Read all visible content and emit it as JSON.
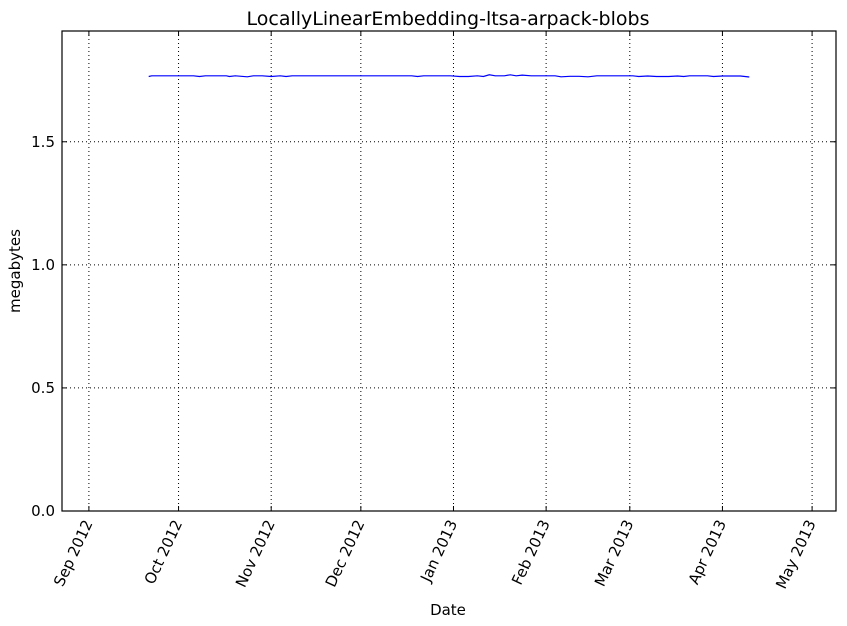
{
  "chart_data": {
    "type": "line",
    "title": "LocallyLinearEmbedding-ltsa-arpack-blobs",
    "xlabel": "Date",
    "ylabel": "megabytes",
    "xlim": [
      "2012-08-23",
      "2013-05-09"
    ],
    "ylim": [
      0,
      1.95
    ],
    "grid": true,
    "x_ticks": [
      {
        "date": "2012-09-01",
        "label": "Sep 2012"
      },
      {
        "date": "2012-10-01",
        "label": "Oct 2012"
      },
      {
        "date": "2012-11-01",
        "label": "Nov 2012"
      },
      {
        "date": "2012-12-01",
        "label": "Dec 2012"
      },
      {
        "date": "2013-01-01",
        "label": "Jan 2013"
      },
      {
        "date": "2013-02-01",
        "label": "Feb 2013"
      },
      {
        "date": "2013-03-01",
        "label": "Mar 2013"
      },
      {
        "date": "2013-04-01",
        "label": "Apr 2013"
      },
      {
        "date": "2013-05-01",
        "label": "May 2013"
      }
    ],
    "y_ticks": [
      {
        "value": 0.0,
        "label": "0.0"
      },
      {
        "value": 0.5,
        "label": "0.5"
      },
      {
        "value": 1.0,
        "label": "1.0"
      },
      {
        "value": 1.5,
        "label": "1.5"
      }
    ],
    "series": [
      {
        "color": "#0000ff",
        "points": [
          [
            "2012-09-21",
            1.765
          ],
          [
            "2012-09-22",
            1.768
          ],
          [
            "2012-09-25",
            1.768
          ],
          [
            "2012-09-29",
            1.768
          ],
          [
            "2012-10-03",
            1.768
          ],
          [
            "2012-10-06",
            1.768
          ],
          [
            "2012-10-08",
            1.765
          ],
          [
            "2012-10-10",
            1.768
          ],
          [
            "2012-10-14",
            1.768
          ],
          [
            "2012-10-17",
            1.768
          ],
          [
            "2012-10-18",
            1.765
          ],
          [
            "2012-10-20",
            1.768
          ],
          [
            "2012-10-24",
            1.764
          ],
          [
            "2012-10-26",
            1.768
          ],
          [
            "2012-10-29",
            1.768
          ],
          [
            "2012-11-01",
            1.765
          ],
          [
            "2012-11-04",
            1.768
          ],
          [
            "2012-11-06",
            1.765
          ],
          [
            "2012-11-08",
            1.768
          ],
          [
            "2012-11-13",
            1.768
          ],
          [
            "2012-11-18",
            1.768
          ],
          [
            "2012-11-23",
            1.768
          ],
          [
            "2012-11-28",
            1.768
          ],
          [
            "2012-12-03",
            1.768
          ],
          [
            "2012-12-08",
            1.768
          ],
          [
            "2012-12-13",
            1.768
          ],
          [
            "2012-12-18",
            1.768
          ],
          [
            "2012-12-20",
            1.765
          ],
          [
            "2012-12-22",
            1.768
          ],
          [
            "2012-12-27",
            1.768
          ],
          [
            "2012-12-31",
            1.768
          ],
          [
            "2013-01-03",
            1.765
          ],
          [
            "2013-01-06",
            1.765
          ],
          [
            "2013-01-09",
            1.768
          ],
          [
            "2013-01-11",
            1.765
          ],
          [
            "2013-01-13",
            1.772
          ],
          [
            "2013-01-15",
            1.768
          ],
          [
            "2013-01-18",
            1.768
          ],
          [
            "2013-01-20",
            1.772
          ],
          [
            "2013-01-22",
            1.768
          ],
          [
            "2013-01-24",
            1.771
          ],
          [
            "2013-01-27",
            1.768
          ],
          [
            "2013-02-01",
            1.768
          ],
          [
            "2013-02-04",
            1.768
          ],
          [
            "2013-02-06",
            1.764
          ],
          [
            "2013-02-09",
            1.766
          ],
          [
            "2013-02-12",
            1.766
          ],
          [
            "2013-02-15",
            1.764
          ],
          [
            "2013-02-18",
            1.768
          ],
          [
            "2013-02-22",
            1.768
          ],
          [
            "2013-02-26",
            1.768
          ],
          [
            "2013-03-02",
            1.768
          ],
          [
            "2013-03-04",
            1.765
          ],
          [
            "2013-03-07",
            1.767
          ],
          [
            "2013-03-10",
            1.765
          ],
          [
            "2013-03-14",
            1.765
          ],
          [
            "2013-03-17",
            1.767
          ],
          [
            "2013-03-19",
            1.765
          ],
          [
            "2013-03-21",
            1.768
          ],
          [
            "2013-03-24",
            1.768
          ],
          [
            "2013-03-27",
            1.768
          ],
          [
            "2013-03-29",
            1.765
          ],
          [
            "2013-04-01",
            1.767
          ],
          [
            "2013-04-04",
            1.767
          ],
          [
            "2013-04-07",
            1.767
          ],
          [
            "2013-04-10",
            1.763
          ]
        ]
      }
    ]
  }
}
